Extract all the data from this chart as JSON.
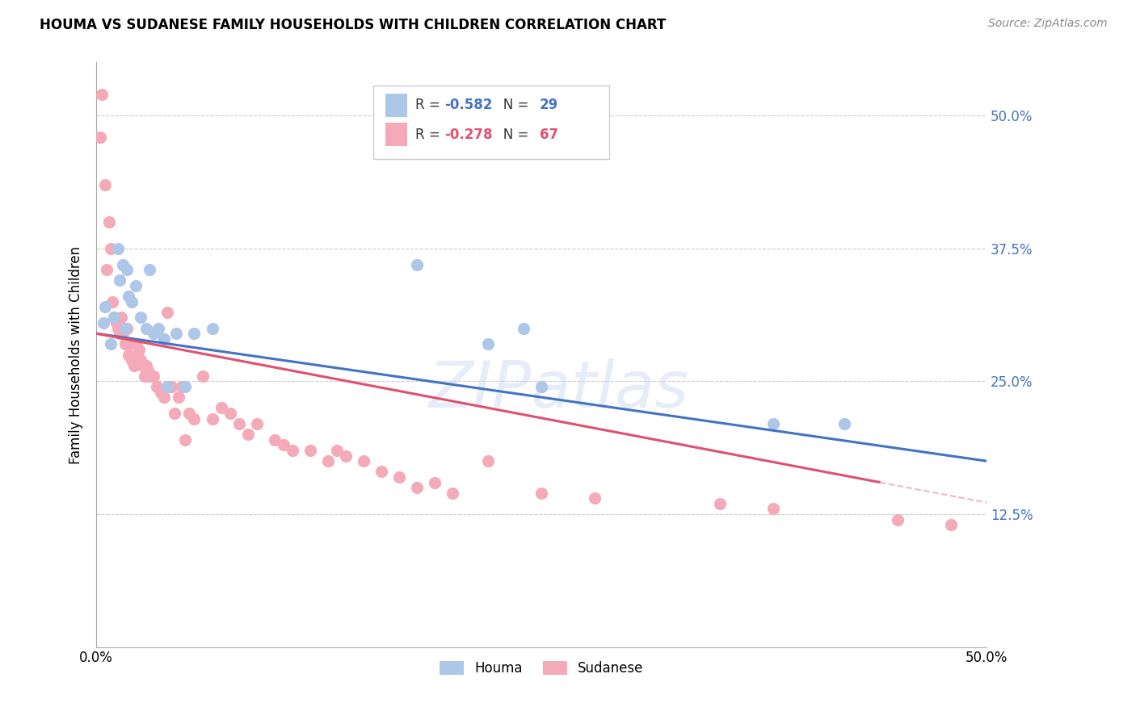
{
  "title": "HOUMA VS SUDANESE FAMILY HOUSEHOLDS WITH CHILDREN CORRELATION CHART",
  "source": "Source: ZipAtlas.com",
  "ylabel": "Family Households with Children",
  "houma_R": "-0.582",
  "houma_N": "29",
  "sudanese_R": "-0.278",
  "sudanese_N": "67",
  "houma_color": "#aec6e8",
  "sudanese_color": "#f4aab8",
  "houma_line_color": "#4472c4",
  "sudanese_line_color": "#e05070",
  "sudanese_line_ext_color": "#f0b8c8",
  "watermark": "ZIPatlas",
  "xlim": [
    0.0,
    0.5
  ],
  "ylim": [
    0.0,
    0.55
  ],
  "ytick_positions": [
    0.125,
    0.25,
    0.375,
    0.5
  ],
  "ytick_labels": [
    "12.5%",
    "25.0%",
    "37.5%",
    "50.0%"
  ],
  "houma_points": [
    [
      0.004,
      0.305
    ],
    [
      0.005,
      0.32
    ],
    [
      0.008,
      0.285
    ],
    [
      0.01,
      0.31
    ],
    [
      0.012,
      0.375
    ],
    [
      0.013,
      0.345
    ],
    [
      0.015,
      0.36
    ],
    [
      0.016,
      0.3
    ],
    [
      0.017,
      0.355
    ],
    [
      0.018,
      0.33
    ],
    [
      0.02,
      0.325
    ],
    [
      0.022,
      0.34
    ],
    [
      0.025,
      0.31
    ],
    [
      0.028,
      0.3
    ],
    [
      0.03,
      0.355
    ],
    [
      0.032,
      0.295
    ],
    [
      0.035,
      0.3
    ],
    [
      0.038,
      0.29
    ],
    [
      0.04,
      0.245
    ],
    [
      0.045,
      0.295
    ],
    [
      0.05,
      0.245
    ],
    [
      0.055,
      0.295
    ],
    [
      0.065,
      0.3
    ],
    [
      0.18,
      0.36
    ],
    [
      0.22,
      0.285
    ],
    [
      0.24,
      0.3
    ],
    [
      0.25,
      0.245
    ],
    [
      0.38,
      0.21
    ],
    [
      0.42,
      0.21
    ]
  ],
  "sudanese_points": [
    [
      0.002,
      0.48
    ],
    [
      0.003,
      0.52
    ],
    [
      0.005,
      0.435
    ],
    [
      0.006,
      0.355
    ],
    [
      0.007,
      0.4
    ],
    [
      0.008,
      0.375
    ],
    [
      0.009,
      0.325
    ],
    [
      0.01,
      0.31
    ],
    [
      0.011,
      0.305
    ],
    [
      0.012,
      0.3
    ],
    [
      0.013,
      0.295
    ],
    [
      0.014,
      0.31
    ],
    [
      0.015,
      0.295
    ],
    [
      0.016,
      0.285
    ],
    [
      0.017,
      0.3
    ],
    [
      0.018,
      0.275
    ],
    [
      0.019,
      0.285
    ],
    [
      0.02,
      0.27
    ],
    [
      0.021,
      0.265
    ],
    [
      0.022,
      0.285
    ],
    [
      0.023,
      0.275
    ],
    [
      0.024,
      0.28
    ],
    [
      0.025,
      0.27
    ],
    [
      0.026,
      0.265
    ],
    [
      0.027,
      0.255
    ],
    [
      0.028,
      0.265
    ],
    [
      0.029,
      0.26
    ],
    [
      0.03,
      0.255
    ],
    [
      0.032,
      0.255
    ],
    [
      0.034,
      0.245
    ],
    [
      0.036,
      0.24
    ],
    [
      0.038,
      0.235
    ],
    [
      0.04,
      0.315
    ],
    [
      0.042,
      0.245
    ],
    [
      0.044,
      0.22
    ],
    [
      0.046,
      0.235
    ],
    [
      0.048,
      0.245
    ],
    [
      0.05,
      0.195
    ],
    [
      0.052,
      0.22
    ],
    [
      0.055,
      0.215
    ],
    [
      0.06,
      0.255
    ],
    [
      0.065,
      0.215
    ],
    [
      0.07,
      0.225
    ],
    [
      0.075,
      0.22
    ],
    [
      0.08,
      0.21
    ],
    [
      0.085,
      0.2
    ],
    [
      0.09,
      0.21
    ],
    [
      0.1,
      0.195
    ],
    [
      0.105,
      0.19
    ],
    [
      0.11,
      0.185
    ],
    [
      0.12,
      0.185
    ],
    [
      0.13,
      0.175
    ],
    [
      0.135,
      0.185
    ],
    [
      0.14,
      0.18
    ],
    [
      0.15,
      0.175
    ],
    [
      0.16,
      0.165
    ],
    [
      0.17,
      0.16
    ],
    [
      0.18,
      0.15
    ],
    [
      0.19,
      0.155
    ],
    [
      0.2,
      0.145
    ],
    [
      0.22,
      0.175
    ],
    [
      0.25,
      0.145
    ],
    [
      0.28,
      0.14
    ],
    [
      0.35,
      0.135
    ],
    [
      0.38,
      0.13
    ],
    [
      0.45,
      0.12
    ],
    [
      0.48,
      0.115
    ]
  ],
  "houma_line": [
    [
      0.0,
      0.295
    ],
    [
      0.5,
      0.175
    ]
  ],
  "sudanese_line_solid": [
    [
      0.0,
      0.295
    ],
    [
      0.44,
      0.155
    ]
  ],
  "sudanese_line_dashed": [
    [
      0.44,
      0.155
    ],
    [
      0.5,
      0.136
    ]
  ]
}
